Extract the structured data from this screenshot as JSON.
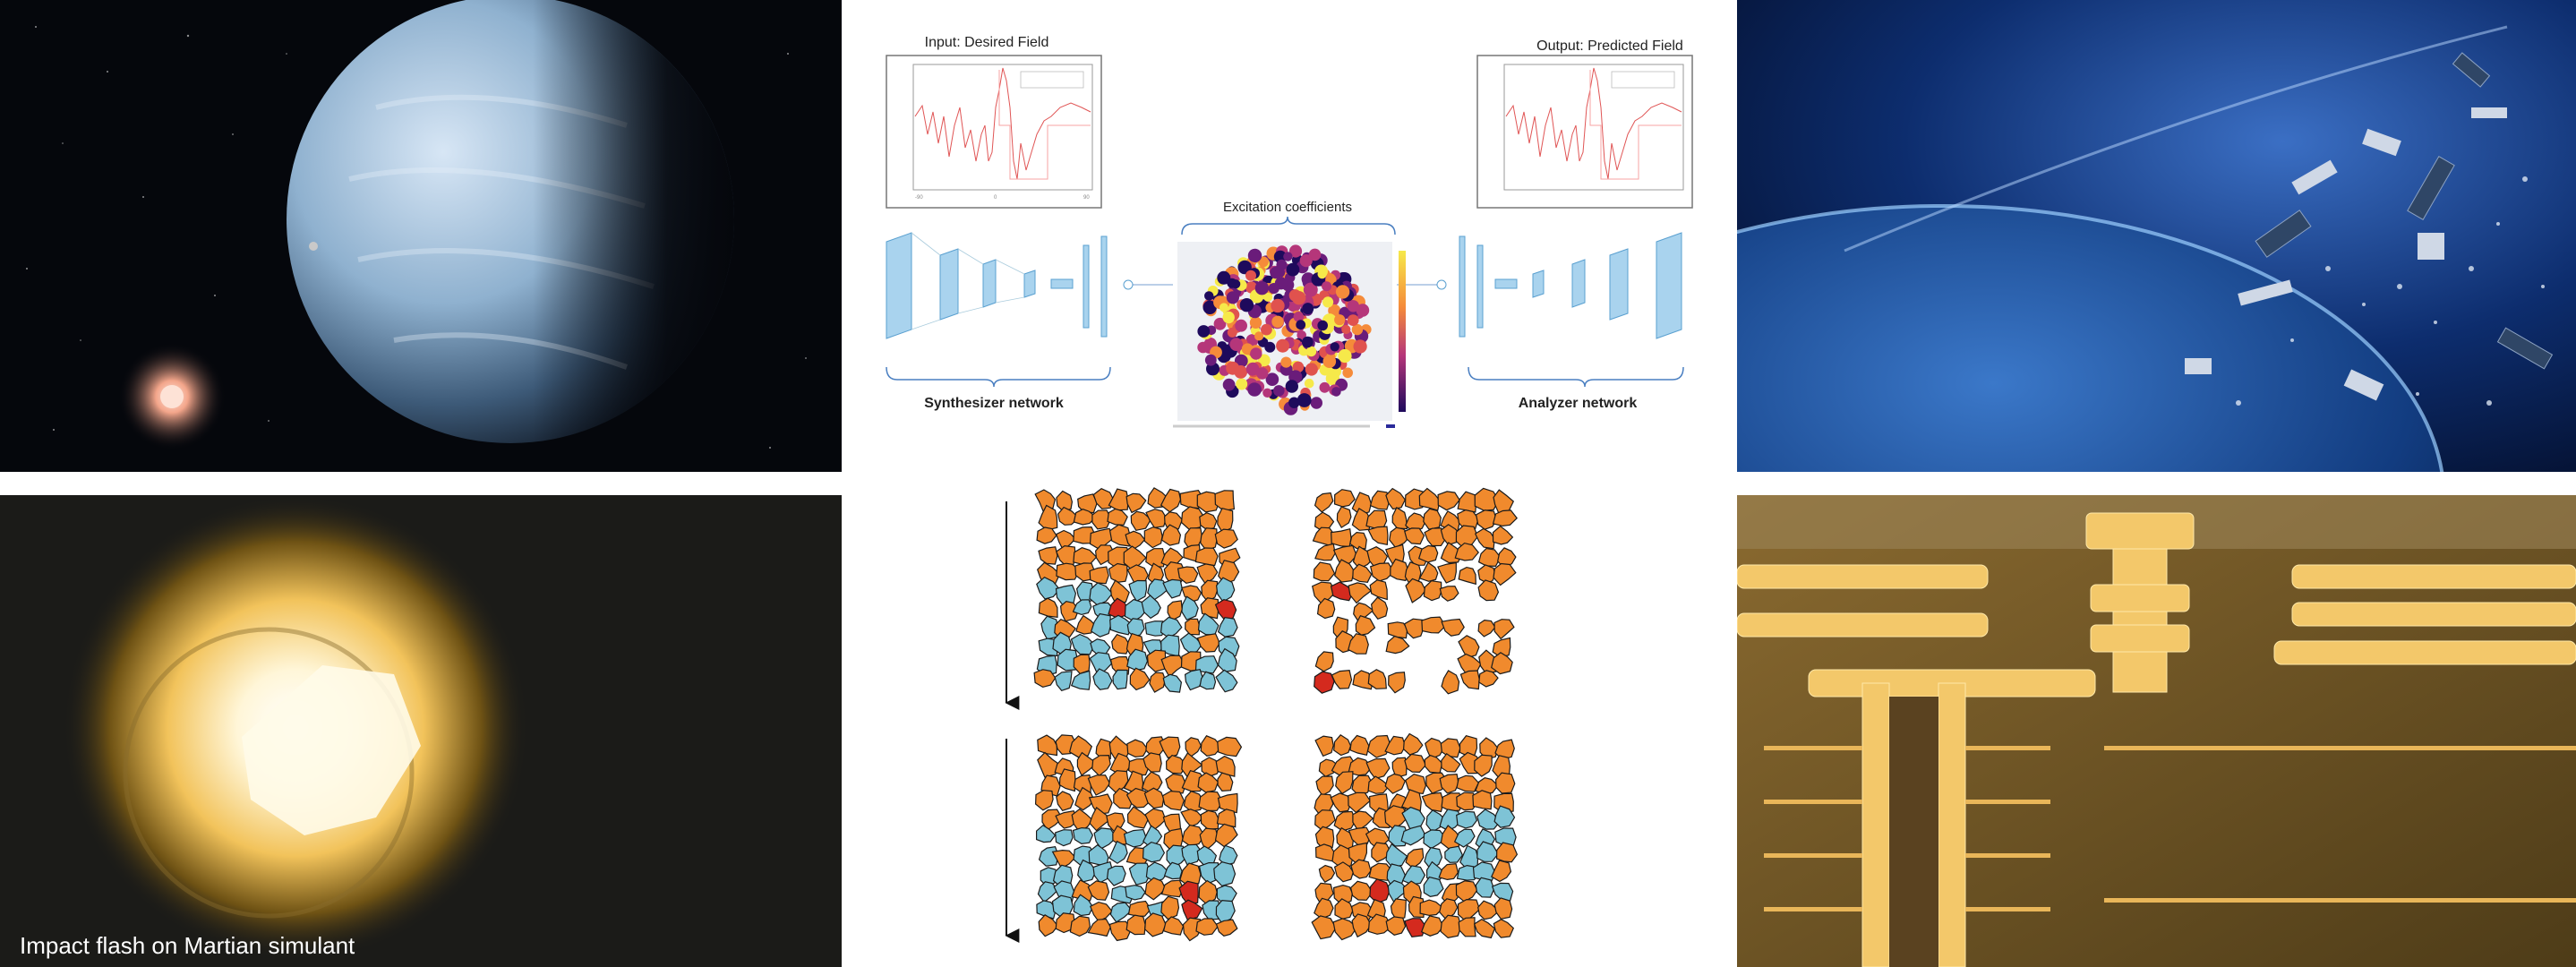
{
  "diagram": {
    "input_title": "Input: Desired Field",
    "output_title": "Output: Predicted Field",
    "center_title": "Excitation coefficients",
    "left_label": "Synthesizer network",
    "right_label": "Analyzer network"
  },
  "impact": {
    "caption": "Impact flash on Martian simulant"
  },
  "colors": {
    "space_bg": "#05070c",
    "planet": "#8fb1cf",
    "orange_grain": "#f08a2d",
    "blue_grain": "#7ec3d6",
    "red_grain": "#d42a1e",
    "chip_gold": "#f3c86a",
    "chip_bg": "#6b5426"
  }
}
